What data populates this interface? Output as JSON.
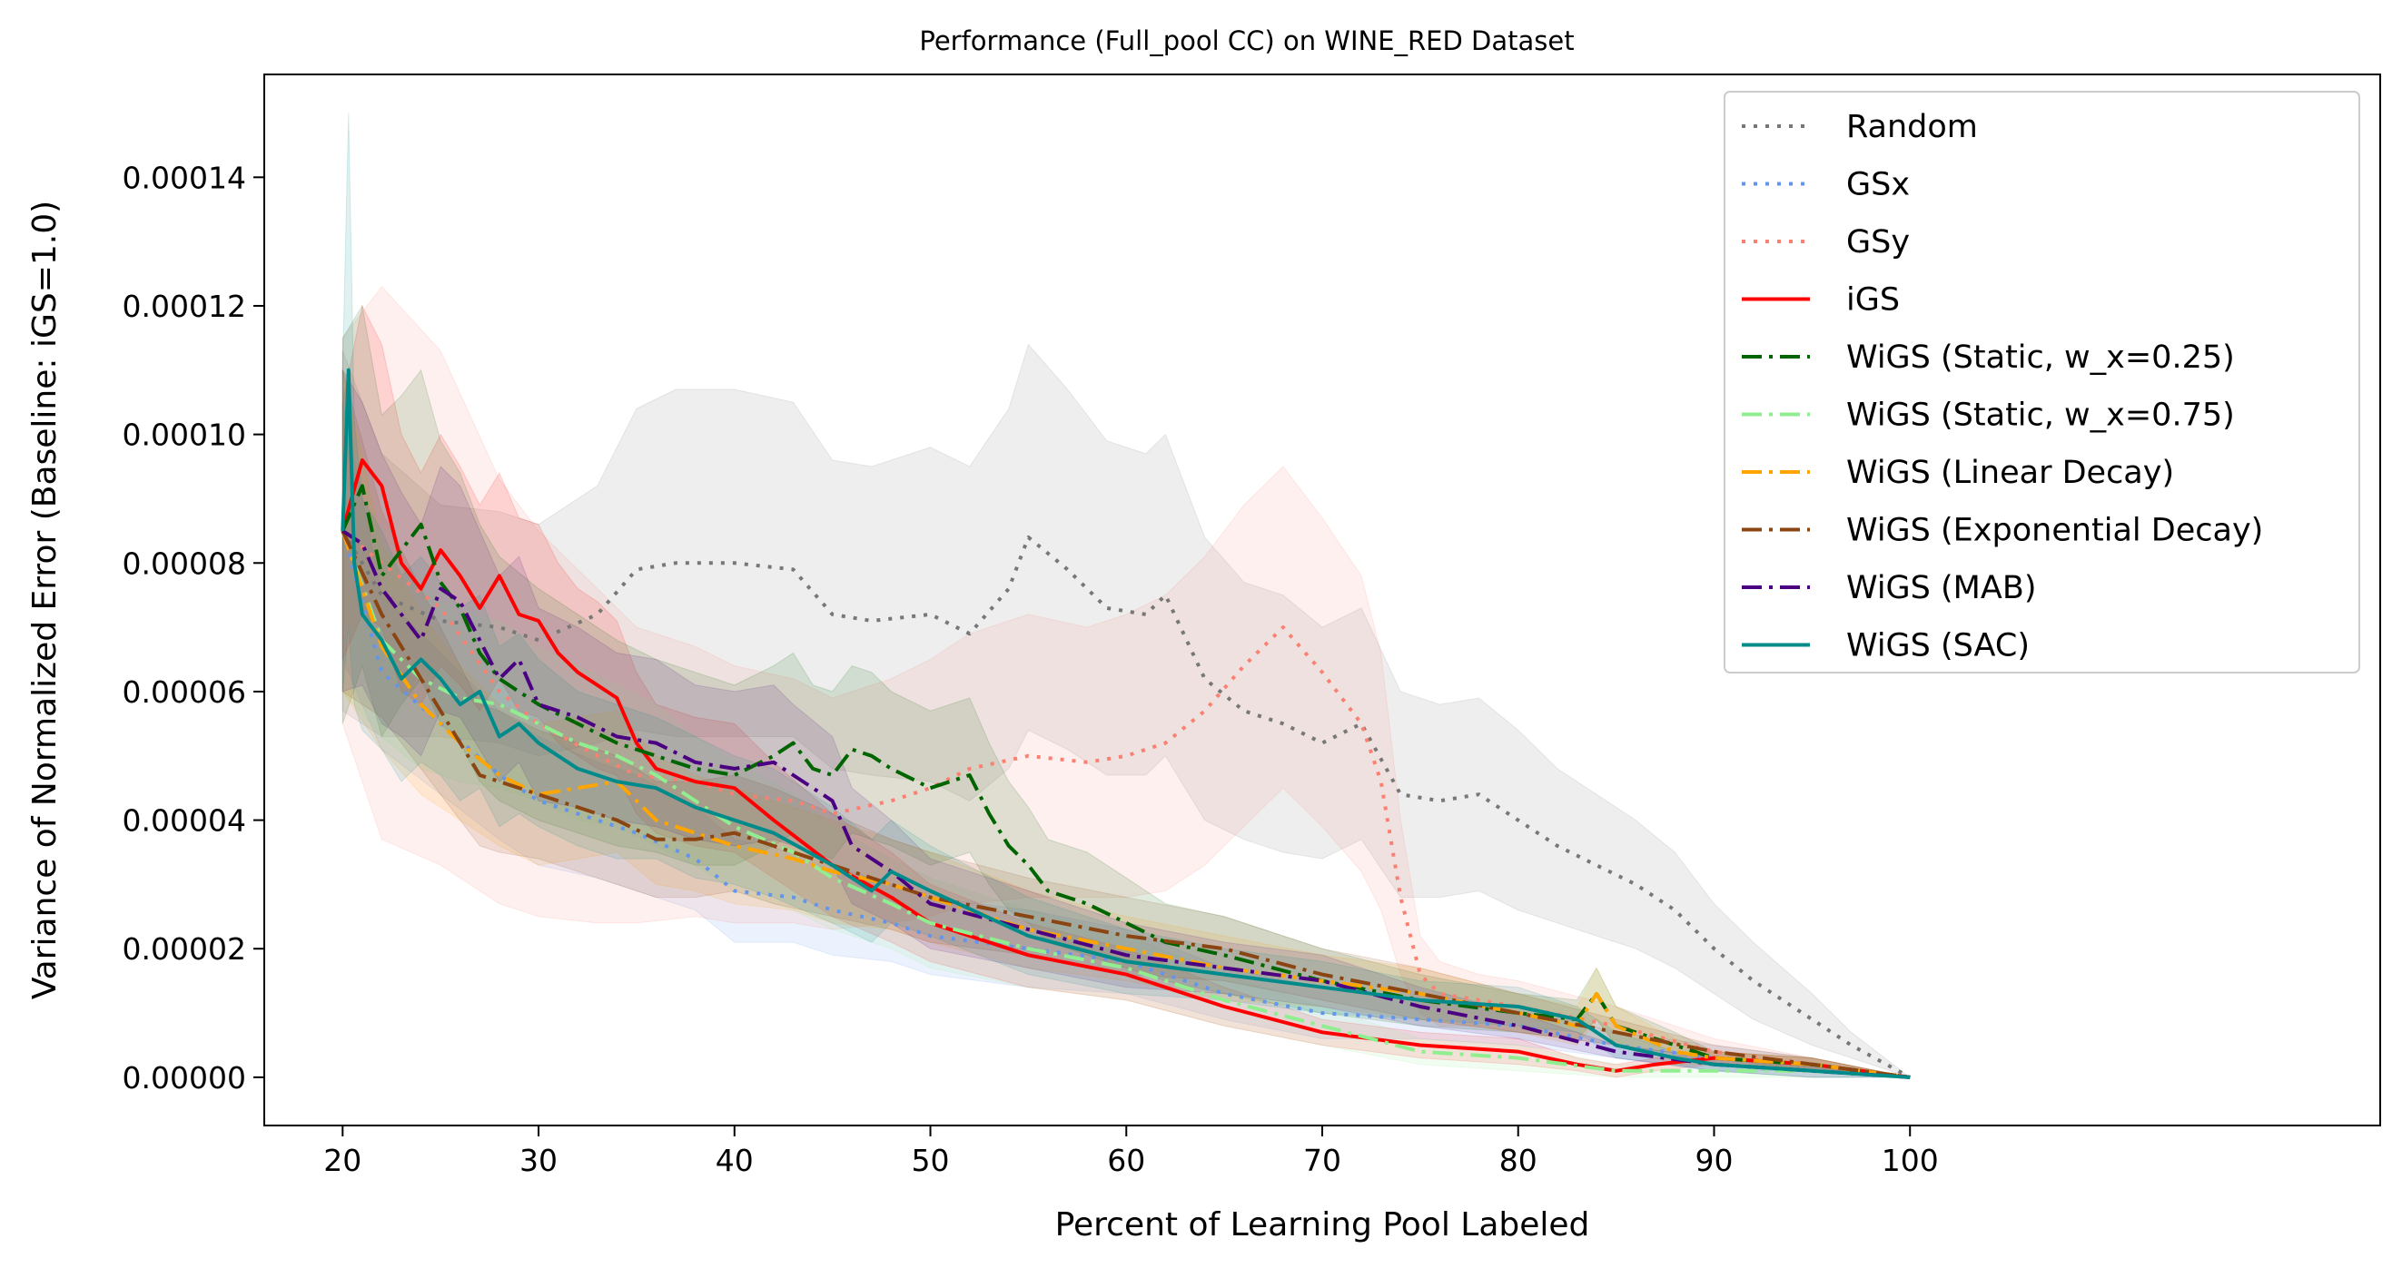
{
  "chart_data": {
    "type": "line",
    "title": "Performance (Full_pool CC) on WINE_RED Dataset",
    "xlabel": "Percent of Learning Pool Labeled",
    "ylabel": "Variance of Normalized Error (Baseline: iGS=1.0)",
    "xlim": [
      16,
      124
    ],
    "ylim": [
      -7.5e-06,
      0.000156
    ],
    "xticks": [
      "20",
      "30",
      "40",
      "50",
      "60",
      "70",
      "80",
      "90",
      "100"
    ],
    "yticks": [
      "0.00000",
      "0.00002",
      "0.00004",
      "0.00006",
      "0.00008",
      "0.00010",
      "0.00012",
      "0.00014"
    ],
    "grid": false,
    "legend_position": "top-right",
    "series": [
      {
        "name": "Random",
        "color": "#777777",
        "style": "dotted",
        "x": [
          20,
          22,
          25,
          28,
          30,
          33,
          35,
          37,
          40,
          43,
          45,
          47,
          50,
          52,
          54,
          55,
          57,
          59,
          61,
          62,
          64,
          66,
          68,
          70,
          72,
          74,
          76,
          78,
          80,
          82,
          84,
          86,
          88,
          90,
          92,
          95,
          97,
          100
        ],
        "y": [
          8.5e-05,
          7.5e-05,
          7.1e-05,
          7e-05,
          6.8e-05,
          7.2e-05,
          7.9e-05,
          8e-05,
          8e-05,
          7.9e-05,
          7.2e-05,
          7.1e-05,
          7.2e-05,
          6.9e-05,
          7.6e-05,
          8.4e-05,
          7.9e-05,
          7.3e-05,
          7.2e-05,
          7.5e-05,
          6.2e-05,
          5.7e-05,
          5.5e-05,
          5.2e-05,
          5.5e-05,
          4.4e-05,
          4.3e-05,
          4.4e-05,
          4e-05,
          3.6e-05,
          3.3e-05,
          3e-05,
          2.6e-05,
          2e-05,
          1.5e-05,
          9e-06,
          5e-06,
          0.0
        ],
        "band": [
          2.8e-05,
          2.2e-05,
          1.8e-05,
          1.8e-05,
          1.8e-05,
          2e-05,
          2.5e-05,
          2.7e-05,
          2.7e-05,
          2.6e-05,
          2.4e-05,
          2.4e-05,
          2.6e-05,
          2.6e-05,
          2.8e-05,
          3e-05,
          2.8e-05,
          2.6e-05,
          2.5e-05,
          2.5e-05,
          2.2e-05,
          2e-05,
          2e-05,
          1.8e-05,
          1.8e-05,
          1.6e-05,
          1.5e-05,
          1.5e-05,
          1.4e-05,
          1.2e-05,
          1.1e-05,
          1e-05,
          9e-06,
          7e-06,
          6e-06,
          4e-06,
          2e-06,
          0.0
        ]
      },
      {
        "name": "GSx",
        "color": "#6495ed",
        "style": "dotted",
        "x": [
          20,
          22,
          25,
          28,
          30,
          33,
          35,
          38,
          40,
          43,
          45,
          48,
          50,
          55,
          60,
          65,
          70,
          75,
          80,
          85,
          90,
          95,
          100
        ],
        "y": [
          8.5e-05,
          6.3e-05,
          5.5e-05,
          4.7e-05,
          4.3e-05,
          4e-05,
          3.8e-05,
          3.4e-05,
          2.9e-05,
          2.8e-05,
          2.6e-05,
          2.4e-05,
          2.2e-05,
          2e-05,
          1.8e-05,
          1.3e-05,
          1e-05,
          9e-06,
          8e-06,
          5e-06,
          3e-06,
          2e-06,
          0.0
        ],
        "band": [
          2e-05,
          1.2e-05,
          1.1e-05,
          1e-05,
          1e-05,
          9e-06,
          9e-06,
          8e-06,
          8e-06,
          7e-06,
          7e-06,
          6e-06,
          6e-06,
          6e-06,
          5e-06,
          4e-06,
          4e-06,
          3e-06,
          3e-06,
          2e-06,
          2e-06,
          1e-06,
          0.0
        ]
      },
      {
        "name": "GSy",
        "color": "#fa8072",
        "style": "dotted",
        "x": [
          20,
          22,
          25,
          28,
          30,
          33,
          35,
          38,
          40,
          43,
          45,
          48,
          50,
          52,
          55,
          58,
          60,
          62,
          64,
          66,
          68,
          70,
          72,
          73,
          74,
          75,
          76,
          78,
          80,
          85,
          90,
          95,
          100
        ],
        "y": [
          8.5e-05,
          8e-05,
          7.3e-05,
          6e-05,
          5.5e-05,
          5e-05,
          4.7e-05,
          4.6e-05,
          4.4e-05,
          4.3e-05,
          4.1e-05,
          4.3e-05,
          4.5e-05,
          4.8e-05,
          5e-05,
          4.9e-05,
          5e-05,
          5.2e-05,
          5.7e-05,
          6.4e-05,
          7e-05,
          6.3e-05,
          5.5e-05,
          4.6e-05,
          2.8e-05,
          1.6e-05,
          1.3e-05,
          1.2e-05,
          1.1e-05,
          8e-06,
          4e-06,
          2e-06,
          0.0
        ],
        "band": [
          3e-05,
          4.3e-05,
          4e-05,
          3.3e-05,
          3e-05,
          2.6e-05,
          2.3e-05,
          2.1e-05,
          2e-05,
          1.9e-05,
          1.8e-05,
          1.9e-05,
          2e-05,
          2.1e-05,
          2.2e-05,
          2.1e-05,
          2.2e-05,
          2.3e-05,
          2.4e-05,
          2.5e-05,
          2.5e-05,
          2.4e-05,
          2.3e-05,
          2e-05,
          1.2e-05,
          6e-06,
          5e-06,
          4e-06,
          4e-06,
          3e-06,
          2e-06,
          1e-06,
          0.0
        ]
      },
      {
        "name": "iGS",
        "color": "#ff0000",
        "style": "solid",
        "x": [
          20,
          21,
          22,
          23,
          24,
          25,
          26,
          27,
          28,
          29,
          30,
          31,
          32,
          33,
          34,
          35,
          36,
          38,
          40,
          42,
          45,
          48,
          50,
          55,
          60,
          65,
          70,
          75,
          80,
          83,
          85,
          87,
          90,
          95,
          100
        ],
        "y": [
          8.5e-05,
          9.6e-05,
          9.2e-05,
          8e-05,
          7.6e-05,
          8.2e-05,
          7.8e-05,
          7.3e-05,
          7.8e-05,
          7.2e-05,
          7.1e-05,
          6.6e-05,
          6.3e-05,
          6.1e-05,
          5.9e-05,
          5.2e-05,
          4.8e-05,
          4.6e-05,
          4.5e-05,
          4e-05,
          3.3e-05,
          2.8e-05,
          2.4e-05,
          1.9e-05,
          1.6e-05,
          1.1e-05,
          7e-06,
          5e-06,
          4e-06,
          2e-06,
          1e-06,
          2e-06,
          3e-06,
          2e-06,
          0.0
        ],
        "band": [
          2e-05,
          2.4e-05,
          2.2e-05,
          2e-05,
          1.8e-05,
          1.8e-05,
          1.7e-05,
          1.6e-05,
          1.6e-05,
          1.5e-05,
          1.5e-05,
          1.4e-05,
          1.3e-05,
          1.3e-05,
          1.2e-05,
          1.1e-05,
          1e-05,
          1e-05,
          1e-05,
          9e-06,
          8e-06,
          7e-06,
          6e-06,
          5e-06,
          4e-06,
          3e-06,
          2e-06,
          2e-06,
          2e-06,
          1e-06,
          1e-06,
          1e-06,
          1e-06,
          1e-06,
          0.0
        ]
      },
      {
        "name": "WiGS (Static, w_x=0.25)",
        "color": "#006400",
        "style": "dashdot",
        "x": [
          20,
          21,
          22,
          23,
          24,
          25,
          26,
          27,
          28,
          30,
          32,
          34,
          36,
          38,
          40,
          42,
          43,
          44,
          45,
          46,
          47,
          48,
          50,
          52,
          53,
          54,
          55,
          56,
          57,
          58,
          60,
          62,
          65,
          70,
          75,
          80,
          83,
          84,
          85,
          88,
          90,
          95,
          100
        ],
        "y": [
          8.5e-05,
          9.2e-05,
          7.8e-05,
          8.2e-05,
          8.6e-05,
          7.7e-05,
          7.3e-05,
          6.6e-05,
          6.2e-05,
          5.8e-05,
          5.5e-05,
          5.2e-05,
          5e-05,
          4.8e-05,
          4.7e-05,
          5e-05,
          5.2e-05,
          4.8e-05,
          4.7e-05,
          5.1e-05,
          5e-05,
          4.8e-05,
          4.5e-05,
          4.7e-05,
          4.1e-05,
          3.6e-05,
          3.3e-05,
          2.9e-05,
          2.8e-05,
          2.7e-05,
          2.4e-05,
          2.1e-05,
          1.9e-05,
          1.5e-05,
          1.2e-05,
          1e-05,
          9e-06,
          1.3e-05,
          8e-06,
          5e-06,
          3e-06,
          2e-06,
          0.0
        ],
        "band": [
          3e-05,
          2.8e-05,
          2.5e-05,
          2.4e-05,
          2.4e-05,
          2.2e-05,
          2.1e-05,
          2e-05,
          1.9e-05,
          1.8e-05,
          1.7e-05,
          1.6e-05,
          1.5e-05,
          1.5e-05,
          1.4e-05,
          1.4e-05,
          1.4e-05,
          1.3e-05,
          1.3e-05,
          1.3e-05,
          1.3e-05,
          1.2e-05,
          1.2e-05,
          1.2e-05,
          1.1e-05,
          1e-05,
          9e-06,
          8e-06,
          8e-06,
          8e-06,
          7e-06,
          6e-06,
          6e-06,
          5e-06,
          4e-06,
          3e-06,
          3e-06,
          4e-06,
          3e-06,
          2e-06,
          1e-06,
          1e-06,
          0.0
        ]
      },
      {
        "name": "WiGS (Static, w_x=0.75)",
        "color": "#90ee90",
        "style": "dashdot",
        "x": [
          20,
          22,
          24,
          26,
          28,
          30,
          32,
          34,
          36,
          38,
          40,
          43,
          45,
          48,
          50,
          55,
          60,
          65,
          70,
          75,
          80,
          85,
          90,
          95,
          100
        ],
        "y": [
          8.5e-05,
          6.8e-05,
          6.2e-05,
          5.9e-05,
          5.8e-05,
          5.5e-05,
          5.2e-05,
          5e-05,
          4.7e-05,
          4.3e-05,
          3.9e-05,
          3.5e-05,
          3.1e-05,
          2.7e-05,
          2.4e-05,
          2e-05,
          1.7e-05,
          1.2e-05,
          8e-06,
          4e-06,
          3e-06,
          1e-06,
          1e-06,
          1e-06,
          0.0
        ],
        "band": [
          2.5e-05,
          1.5e-05,
          1.4e-05,
          1.3e-05,
          1.3e-05,
          1.2e-05,
          1.2e-05,
          1.1e-05,
          1.1e-05,
          1e-05,
          1e-05,
          9e-06,
          8e-06,
          7e-06,
          7e-06,
          6e-06,
          5e-06,
          4e-06,
          3e-06,
          2e-06,
          2e-06,
          1e-06,
          1e-06,
          1e-06,
          0.0
        ]
      },
      {
        "name": "WiGS (Linear Decay)",
        "color": "#ffa500",
        "style": "dashdot",
        "x": [
          20,
          22,
          24,
          26,
          28,
          30,
          32,
          34,
          36,
          38,
          40,
          43,
          45,
          48,
          50,
          55,
          60,
          65,
          70,
          75,
          80,
          83,
          84,
          85,
          88,
          90,
          95,
          100
        ],
        "y": [
          8.5e-05,
          6.7e-05,
          5.8e-05,
          5.2e-05,
          4.7e-05,
          4.4e-05,
          4.5e-05,
          4.6e-05,
          4e-05,
          3.8e-05,
          3.6e-05,
          3.4e-05,
          3.2e-05,
          3e-05,
          2.8e-05,
          2.3e-05,
          2e-05,
          1.7e-05,
          1.5e-05,
          1.3e-05,
          1e-05,
          8e-06,
          1.3e-05,
          8e-06,
          4e-06,
          3e-06,
          2e-06,
          0.0
        ],
        "band": [
          2.5e-05,
          1.6e-05,
          1.4e-05,
          1.2e-05,
          1.1e-05,
          1.1e-05,
          1.1e-05,
          1.1e-05,
          1e-05,
          9e-06,
          9e-06,
          8e-06,
          8e-06,
          7e-06,
          7e-06,
          6e-06,
          5e-06,
          5e-06,
          4e-06,
          4e-06,
          3e-06,
          3e-06,
          4e-06,
          3e-06,
          2e-06,
          1e-06,
          1e-06,
          0.0
        ]
      },
      {
        "name": "WiGS (Exponential Decay)",
        "color": "#8b4513",
        "style": "dashdot",
        "x": [
          20,
          22,
          24,
          26,
          27,
          28,
          30,
          32,
          34,
          36,
          38,
          40,
          42,
          45,
          48,
          50,
          55,
          60,
          65,
          70,
          75,
          80,
          85,
          90,
          95,
          100
        ],
        "y": [
          8.5e-05,
          7.2e-05,
          6.2e-05,
          5.2e-05,
          4.7e-05,
          4.6e-05,
          4.4e-05,
          4.2e-05,
          4e-05,
          3.7e-05,
          3.7e-05,
          3.8e-05,
          3.6e-05,
          3.3e-05,
          3e-05,
          2.8e-05,
          2.5e-05,
          2.2e-05,
          2e-05,
          1.6e-05,
          1.3e-05,
          1e-05,
          7e-06,
          4e-06,
          2e-06,
          0.0
        ],
        "band": [
          2.5e-05,
          1.6e-05,
          1.4e-05,
          1.2e-05,
          1.1e-05,
          1.1e-05,
          1e-05,
          1e-05,
          1e-05,
          9e-06,
          9e-06,
          9e-06,
          9e-06,
          8e-06,
          7e-06,
          7e-06,
          6e-06,
          6e-06,
          5e-06,
          4e-06,
          4e-06,
          3e-06,
          2e-06,
          1e-06,
          1e-06,
          0.0
        ]
      },
      {
        "name": "WiGS (MAB)",
        "color": "#4b0082",
        "style": "dashdot",
        "x": [
          20,
          21,
          22,
          23,
          24,
          25,
          26,
          27,
          28,
          29,
          30,
          32,
          34,
          36,
          38,
          40,
          42,
          43,
          45,
          46,
          48,
          50,
          55,
          60,
          65,
          70,
          75,
          80,
          85,
          90,
          95,
          100
        ],
        "y": [
          8.5e-05,
          8.3e-05,
          7.6e-05,
          7.2e-05,
          6.8e-05,
          7.6e-05,
          7.4e-05,
          6.8e-05,
          6.2e-05,
          6.5e-05,
          5.8e-05,
          5.6e-05,
          5.3e-05,
          5.2e-05,
          4.9e-05,
          4.8e-05,
          4.9e-05,
          4.7e-05,
          4.3e-05,
          3.6e-05,
          3.2e-05,
          2.7e-05,
          2.3e-05,
          1.9e-05,
          1.7e-05,
          1.5e-05,
          1.1e-05,
          8e-06,
          4e-06,
          2e-06,
          1e-06,
          0.0
        ],
        "band": [
          2.5e-05,
          2.2e-05,
          2.1e-05,
          1.9e-05,
          1.8e-05,
          1.9e-05,
          1.8e-05,
          1.7e-05,
          1.6e-05,
          1.6e-05,
          1.5e-05,
          1.4e-05,
          1.3e-05,
          1.3e-05,
          1.2e-05,
          1.2e-05,
          1.2e-05,
          1.1e-05,
          1e-05,
          9e-06,
          8e-06,
          7e-06,
          6e-06,
          5e-06,
          4e-06,
          4e-06,
          3e-06,
          2e-06,
          1e-06,
          1e-06,
          1e-06,
          0.0
        ]
      },
      {
        "name": "WiGS (SAC)",
        "color": "#008b8b",
        "style": "solid",
        "x": [
          20,
          20.3,
          20.6,
          21,
          22,
          23,
          24,
          25,
          26,
          27,
          28,
          29,
          30,
          32,
          34,
          36,
          38,
          40,
          42,
          45,
          47,
          48,
          50,
          55,
          60,
          65,
          70,
          75,
          80,
          83,
          85,
          88,
          90,
          95,
          100
        ],
        "y": [
          8.5e-05,
          0.00011,
          8e-05,
          7.2e-05,
          6.8e-05,
          6.2e-05,
          6.5e-05,
          6.2e-05,
          5.8e-05,
          6e-05,
          5.3e-05,
          5.5e-05,
          5.2e-05,
          4.8e-05,
          4.6e-05,
          4.5e-05,
          4.2e-05,
          4e-05,
          3.8e-05,
          3.3e-05,
          2.9e-05,
          3.2e-05,
          2.9e-05,
          2.2e-05,
          1.8e-05,
          1.6e-05,
          1.4e-05,
          1.2e-05,
          1.1e-05,
          9e-06,
          5e-06,
          3e-06,
          2e-06,
          1e-06,
          0.0
        ],
        "band": [
          2.5e-05,
          4e-05,
          2.2e-05,
          1.8e-05,
          1.7e-05,
          1.6e-05,
          1.6e-05,
          1.5e-05,
          1.5e-05,
          1.5e-05,
          1.4e-05,
          1.4e-05,
          1.3e-05,
          1.2e-05,
          1.2e-05,
          1.1e-05,
          1.1e-05,
          1e-05,
          1e-05,
          9e-06,
          8e-06,
          8e-06,
          7e-06,
          6e-06,
          5e-06,
          4e-06,
          4e-06,
          3e-06,
          3e-06,
          2e-06,
          2e-06,
          1e-06,
          1e-06,
          1e-06,
          0.0
        ]
      }
    ]
  }
}
